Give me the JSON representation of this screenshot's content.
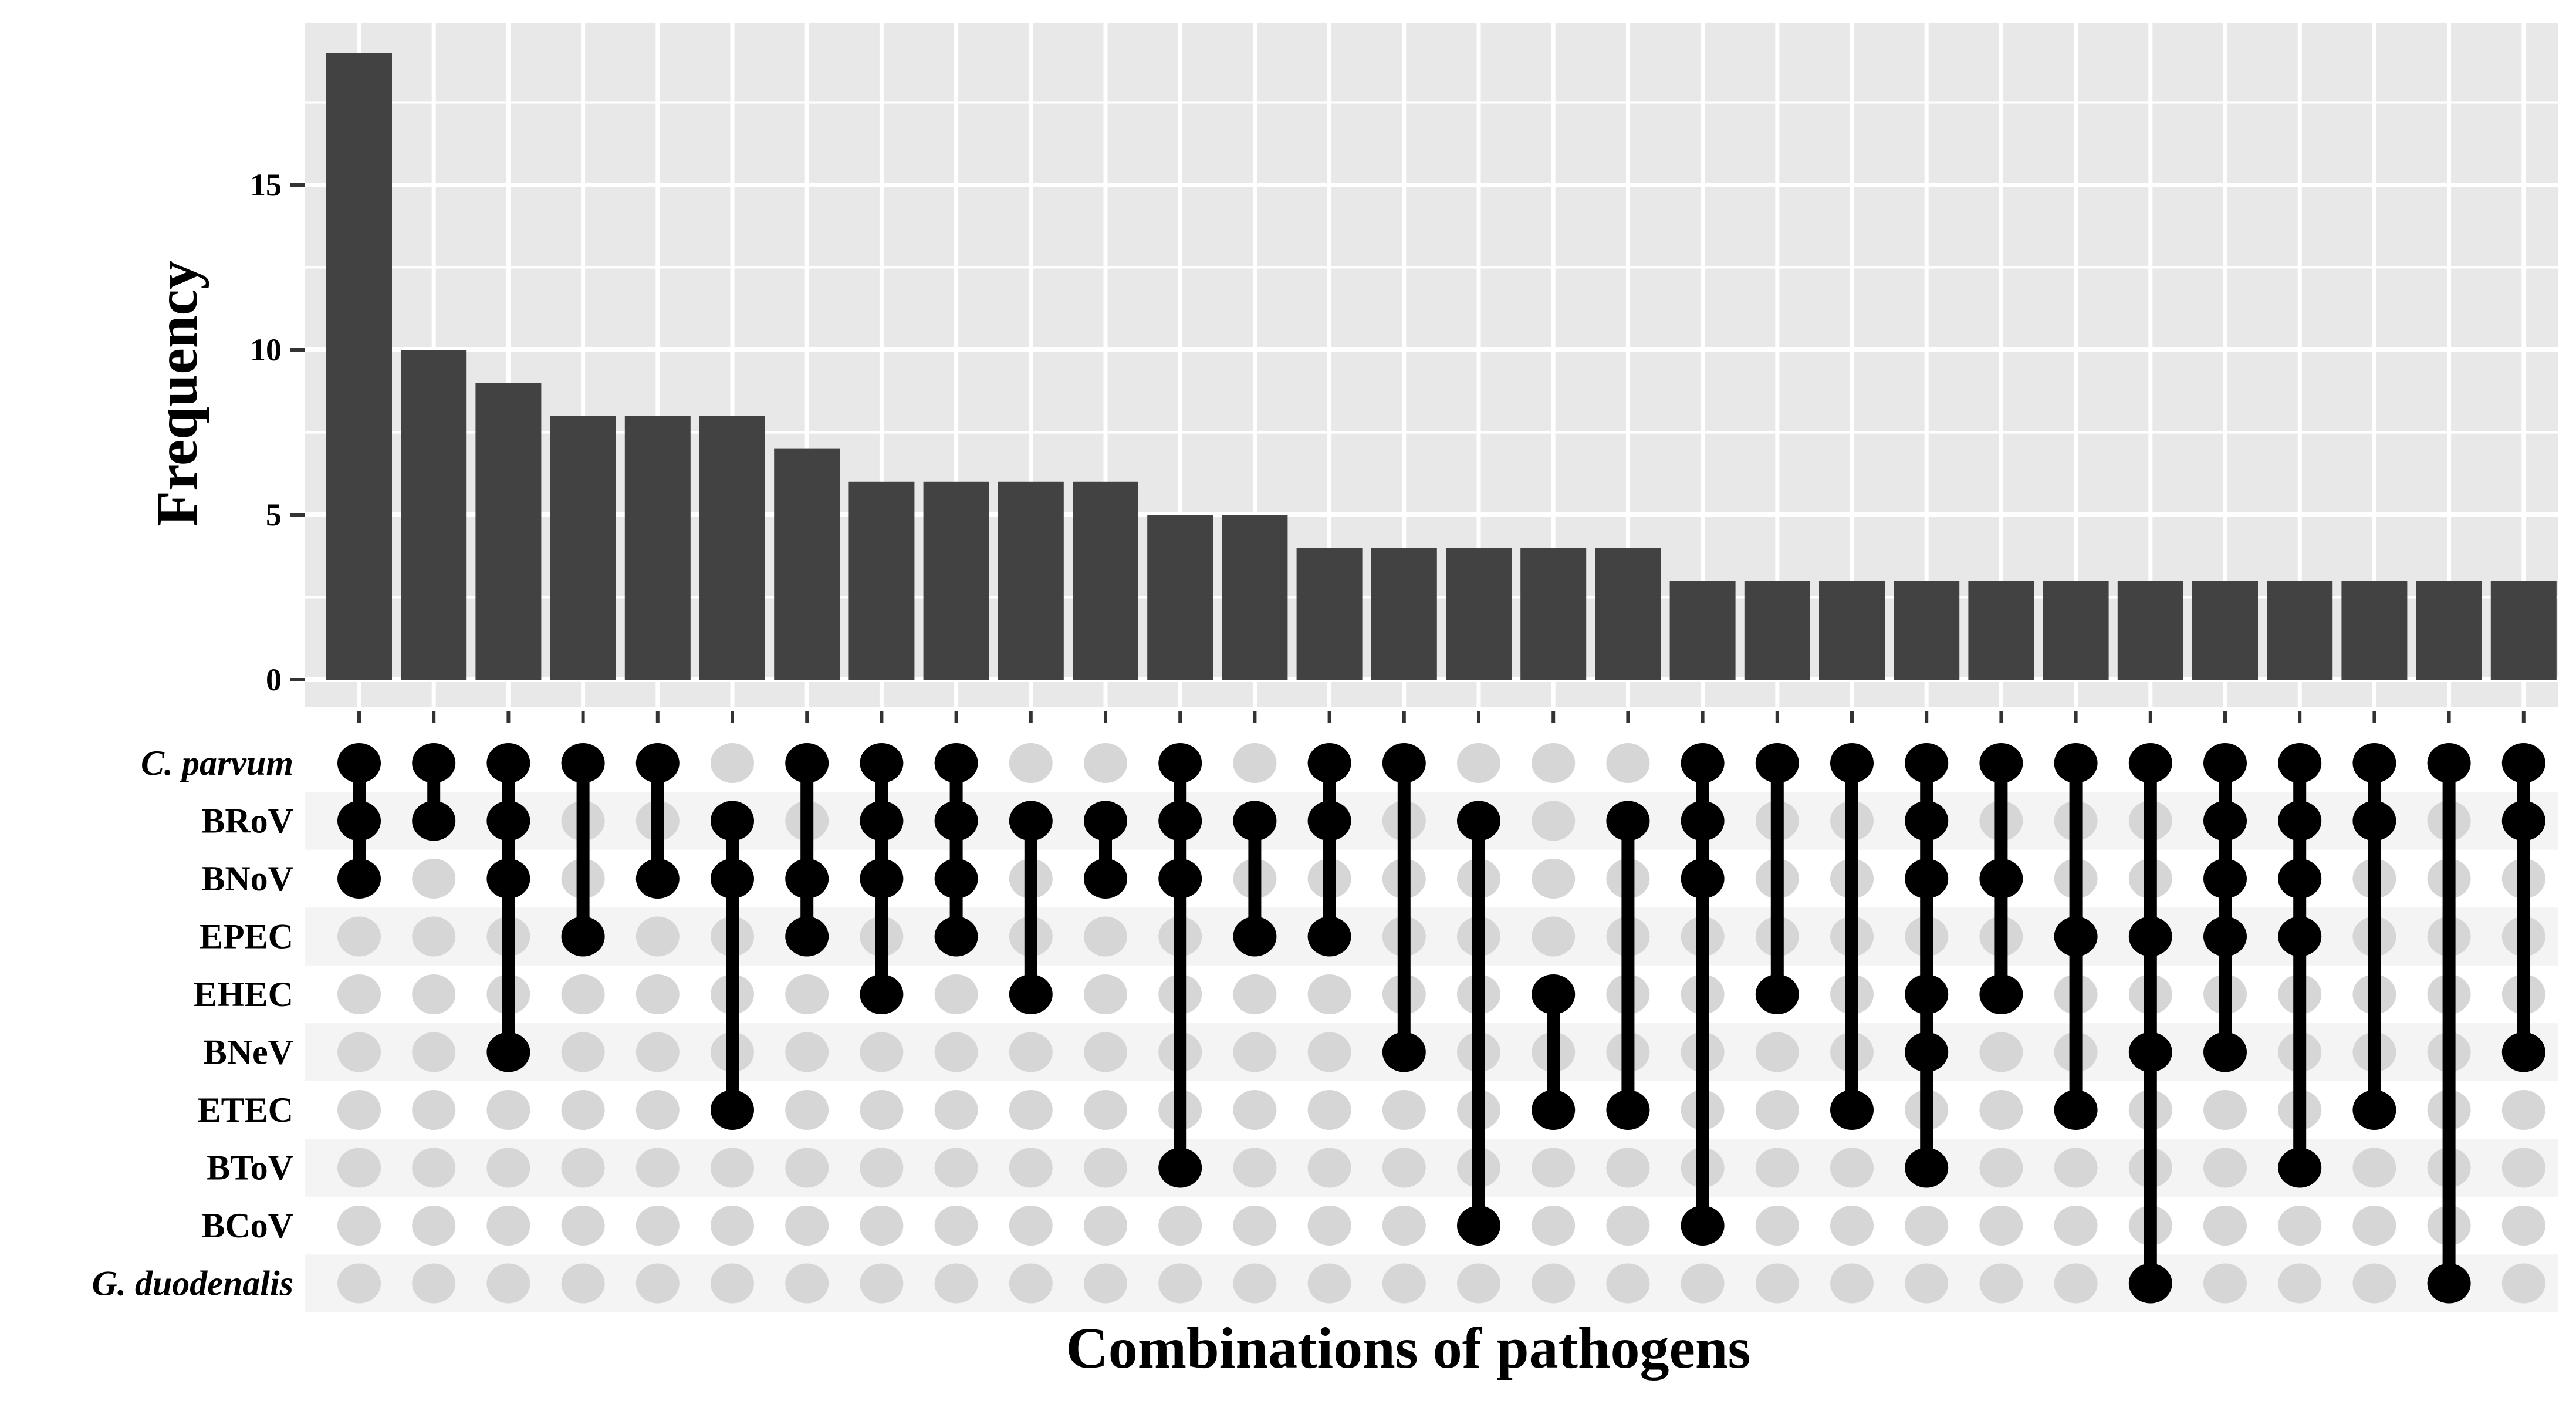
{
  "chart_data": {
    "type": "upset",
    "ylabel": "Frequency",
    "xlabel": "Combinations of pathogens",
    "ylim": [
      0,
      19.5
    ],
    "yticks": [
      0,
      5,
      10,
      15
    ],
    "sets": [
      {
        "name": "C. parvum",
        "italic": true
      },
      {
        "name": "BRoV",
        "italic": false
      },
      {
        "name": "BNoV",
        "italic": false
      },
      {
        "name": "EPEC",
        "italic": false
      },
      {
        "name": "EHEC",
        "italic": false
      },
      {
        "name": "BNeV",
        "italic": false
      },
      {
        "name": "ETEC",
        "italic": false
      },
      {
        "name": "BToV",
        "italic": false
      },
      {
        "name": "BCoV",
        "italic": false
      },
      {
        "name": "G. duodenalis",
        "italic": true
      }
    ],
    "intersections": [
      {
        "count": 19,
        "sets": [
          "C. parvum",
          "BRoV",
          "BNoV"
        ]
      },
      {
        "count": 10,
        "sets": [
          "C. parvum",
          "BRoV"
        ]
      },
      {
        "count": 9,
        "sets": [
          "C. parvum",
          "BRoV",
          "BNoV",
          "BNeV"
        ]
      },
      {
        "count": 8,
        "sets": [
          "C. parvum",
          "EPEC"
        ]
      },
      {
        "count": 8,
        "sets": [
          "C. parvum",
          "BNoV"
        ]
      },
      {
        "count": 8,
        "sets": [
          "BRoV",
          "BNoV",
          "ETEC"
        ]
      },
      {
        "count": 7,
        "sets": [
          "C. parvum",
          "BNoV",
          "EPEC"
        ]
      },
      {
        "count": 6,
        "sets": [
          "C. parvum",
          "BRoV",
          "BNoV",
          "EHEC"
        ]
      },
      {
        "count": 6,
        "sets": [
          "C. parvum",
          "BRoV",
          "BNoV",
          "EPEC"
        ]
      },
      {
        "count": 6,
        "sets": [
          "BRoV",
          "EHEC"
        ]
      },
      {
        "count": 6,
        "sets": [
          "BRoV",
          "BNoV"
        ]
      },
      {
        "count": 5,
        "sets": [
          "C. parvum",
          "BRoV",
          "BNoV",
          "BToV"
        ]
      },
      {
        "count": 5,
        "sets": [
          "BRoV",
          "EPEC"
        ]
      },
      {
        "count": 4,
        "sets": [
          "C. parvum",
          "BRoV",
          "EPEC"
        ]
      },
      {
        "count": 4,
        "sets": [
          "C. parvum",
          "BNeV"
        ]
      },
      {
        "count": 4,
        "sets": [
          "BRoV",
          "BCoV"
        ]
      },
      {
        "count": 4,
        "sets": [
          "EHEC",
          "ETEC"
        ]
      },
      {
        "count": 4,
        "sets": [
          "BRoV",
          "ETEC"
        ]
      },
      {
        "count": 3,
        "sets": [
          "C. parvum",
          "BRoV",
          "BNoV",
          "BCoV"
        ]
      },
      {
        "count": 3,
        "sets": [
          "C. parvum",
          "EHEC"
        ]
      },
      {
        "count": 3,
        "sets": [
          "C. parvum",
          "ETEC"
        ]
      },
      {
        "count": 3,
        "sets": [
          "C. parvum",
          "BRoV",
          "BNoV",
          "EHEC",
          "BNeV",
          "BToV"
        ]
      },
      {
        "count": 3,
        "sets": [
          "C. parvum",
          "BNoV",
          "EHEC"
        ]
      },
      {
        "count": 3,
        "sets": [
          "C. parvum",
          "EPEC",
          "ETEC"
        ]
      },
      {
        "count": 3,
        "sets": [
          "C. parvum",
          "EPEC",
          "BNeV",
          "G. duodenalis"
        ]
      },
      {
        "count": 3,
        "sets": [
          "C. parvum",
          "BRoV",
          "BNoV",
          "EPEC",
          "BNeV"
        ]
      },
      {
        "count": 3,
        "sets": [
          "C. parvum",
          "BRoV",
          "BNoV",
          "EPEC",
          "BToV"
        ]
      },
      {
        "count": 3,
        "sets": [
          "C. parvum",
          "BRoV",
          "ETEC"
        ]
      },
      {
        "count": 3,
        "sets": [
          "C. parvum",
          "G. duodenalis"
        ]
      },
      {
        "count": 3,
        "sets": [
          "C. parvum",
          "BRoV",
          "BNeV"
        ]
      }
    ],
    "colors": {
      "bar": "#424242",
      "panel": "#e8e8e8",
      "grid": "#ffffff",
      "stripe": "#f4f4f4",
      "dot_on": "#000000",
      "dot_off": "#d6d6d6"
    }
  }
}
